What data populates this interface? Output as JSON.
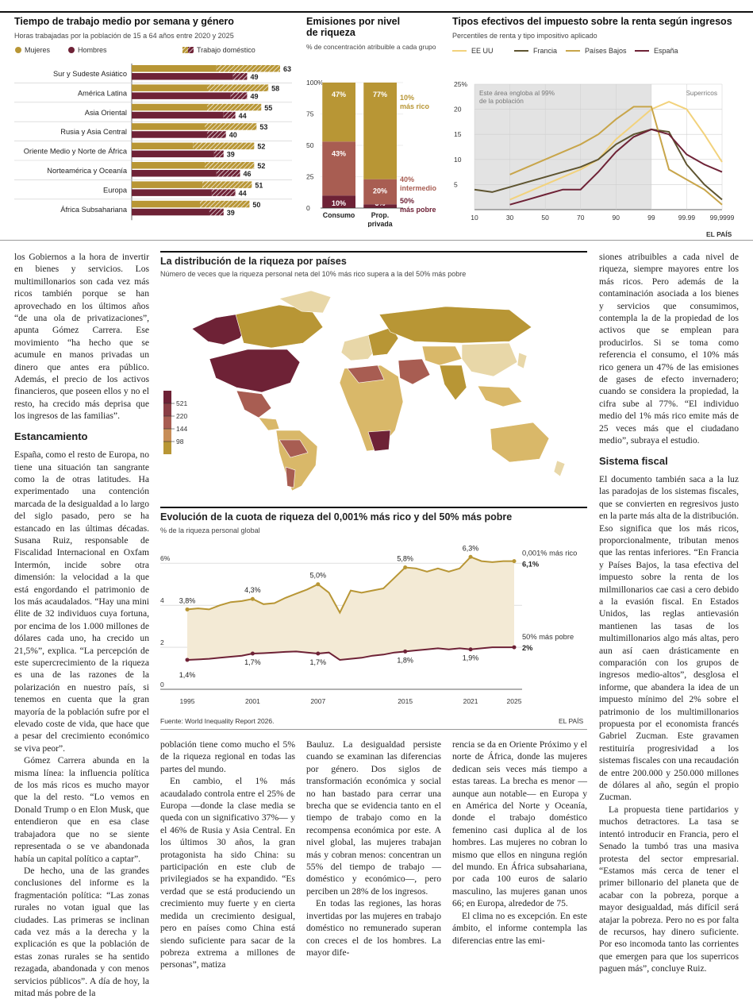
{
  "colors": {
    "gold": "#b89635",
    "maroon": "#6e2236",
    "rose": "#a85d52",
    "sand": "#d9b869",
    "light": "#e8d7a8",
    "pale": "#f3ead5"
  },
  "chart1": {
    "title": "Tiempo de trabajo medio por semana y género",
    "subtitle": "Horas trabajadas por la población de 15 a 64 años entre 2020 y 2025",
    "legend": {
      "women": "Mujeres",
      "men": "Hombres",
      "domestic": "Trabajo doméstico"
    }
  },
  "chart2": {
    "title_line1": "Emisiones por nivel",
    "title_line2": "de riqueza",
    "subtitle": "% de concentración atribuible a cada grupo",
    "y_ticks": [
      "100%",
      "75",
      "50",
      "25",
      "0"
    ],
    "cat_consumo": "Consumo",
    "cat_prop1": "Prop.",
    "cat_prop2": "privada",
    "labels": {
      "c_top": "47%",
      "c_mid": "43%",
      "c_bot": "10%",
      "p_top": "77%",
      "p_mid": "20%",
      "p_bot": "3%"
    },
    "groups": {
      "top_a": "10%",
      "top_b": "más rico",
      "mid_a": "40%",
      "mid_b": "intermedio",
      "bot_a": "50%",
      "bot_b": "más pobre"
    }
  },
  "chart3": {
    "title": "Tipos efectivos del impuesto sobre la renta según ingresos",
    "subtitle": "Percentiles de renta y tipo impositivo aplicado",
    "legend": [
      "EE UU",
      "Francia",
      "Países Bajos",
      "España"
    ],
    "y_ticks": [
      "25%",
      "20",
      "15",
      "10",
      "5"
    ],
    "x_ticks": [
      "10",
      "30",
      "50",
      "70",
      "90",
      "99",
      "99.99",
      "99,9999"
    ],
    "area_note_1": "Este área engloba al 99%",
    "area_note_2": "de la población",
    "superricos": "Superricos"
  },
  "source_top": "EL PAÍS",
  "map": {
    "title": "La distribución de la riqueza por países",
    "subtitle": "Número de veces que la riqueza personal neta del 10% más rico supera a la del 50% más pobre",
    "legend": [
      "521",
      "220",
      "144",
      "98"
    ]
  },
  "line": {
    "title": "Evolución de la cuota de riqueza del 0,001% más rico y del 50% más pobre",
    "subtitle": "% de la riqueza personal global",
    "y_ticks": [
      "6%",
      "4",
      "2",
      "0"
    ],
    "x_ticks": [
      "1995",
      "2001",
      "2007",
      "2015",
      "2021",
      "2025"
    ],
    "rich_label": "0,001% más rico",
    "rich_val": "6,1%",
    "poor_label": "50% más pobre",
    "poor_val": "2%",
    "rich_ann": [
      "3,8%",
      "4,3%",
      "5,0%",
      "5,8%",
      "6,3%"
    ],
    "poor_ann": [
      "1,4%",
      "1,7%",
      "1,7%",
      "1,8%",
      "1,9%"
    ],
    "source": "Fuente: World Inequality Report 2026.",
    "brand": "EL PAÍS"
  },
  "chart_data": [
    {
      "type": "bar",
      "title": "Tiempo de trabajo medio por semana y género",
      "categories": [
        "Sur y Sudeste Asiático",
        "América Latina",
        "Asia Oriental",
        "Rusia y Asia Central",
        "Oriente Medio y Norte de África",
        "Norteamérica y Oceanía",
        "Europa",
        "África Subsahariana"
      ],
      "series": [
        {
          "name": "Mujeres",
          "values": [
            63,
            58,
            55,
            53,
            52,
            52,
            51,
            50
          ],
          "domestic": [
            27,
            26,
            23,
            22,
            26,
            21,
            21,
            21
          ]
        },
        {
          "name": "Hombres",
          "values": [
            49,
            49,
            44,
            40,
            39,
            46,
            44,
            39
          ],
          "domestic": [
            6,
            7,
            5,
            8,
            4,
            10,
            10,
            6
          ]
        }
      ],
      "xlim": [
        0,
        70
      ]
    },
    {
      "type": "bar",
      "title": "Emisiones por nivel de riqueza",
      "categories": [
        "Consumo",
        "Prop. privada"
      ],
      "series": [
        {
          "name": "10% más rico",
          "values": [
            47,
            77
          ]
        },
        {
          "name": "40% intermedio",
          "values": [
            43,
            20
          ]
        },
        {
          "name": "50% más pobre",
          "values": [
            10,
            3
          ]
        }
      ],
      "ylim": [
        0,
        100
      ]
    },
    {
      "type": "line",
      "title": "Tipos efectivos del impuesto sobre la renta según ingresos",
      "x": [
        "10",
        "20",
        "30",
        "40",
        "50",
        "60",
        "70",
        "80",
        "90",
        "95",
        "99",
        "99.9",
        "99.99",
        "99.999",
        "99,9999"
      ],
      "series": [
        {
          "name": "EE UU",
          "values": [
            null,
            null,
            2,
            3.5,
            5,
            6.5,
            8,
            10,
            14,
            17,
            20,
            21.5,
            20,
            15,
            9.5
          ]
        },
        {
          "name": "Francia",
          "values": [
            4,
            3.5,
            4.5,
            5.5,
            6.5,
            7.5,
            8.5,
            10,
            13,
            15,
            16,
            15.5,
            9,
            5,
            2
          ]
        },
        {
          "name": "Países Bajos",
          "values": [
            null,
            null,
            7,
            8.5,
            10,
            11.5,
            13,
            15,
            18,
            20.5,
            20.5,
            8,
            6,
            4,
            1
          ]
        },
        {
          "name": "España",
          "values": [
            null,
            null,
            1,
            2,
            3,
            4,
            4,
            7.5,
            11.5,
            14.5,
            16,
            15,
            11,
            9,
            7.5
          ]
        }
      ],
      "ylim": [
        0,
        25
      ]
    },
    {
      "type": "line",
      "title": "Evolución de la cuota de riqueza del 0,001% más rico y del 50% más pobre",
      "x": [
        1995,
        1996,
        1997,
        1998,
        1999,
        2000,
        2001,
        2002,
        2003,
        2004,
        2005,
        2006,
        2007,
        2008,
        2009,
        2010,
        2011,
        2012,
        2013,
        2014,
        2015,
        2016,
        2017,
        2018,
        2019,
        2020,
        2021,
        2022,
        2023,
        2024,
        2025
      ],
      "series": [
        {
          "name": "0,001% más rico",
          "values": [
            3.8,
            3.85,
            3.8,
            4.0,
            4.15,
            4.2,
            4.3,
            4.05,
            4.1,
            4.35,
            4.55,
            4.75,
            5.0,
            4.6,
            3.65,
            4.7,
            4.6,
            4.7,
            4.8,
            5.3,
            5.8,
            5.75,
            5.6,
            5.75,
            5.6,
            5.75,
            6.3,
            6.1,
            6.05,
            6.1,
            6.1
          ]
        },
        {
          "name": "50% más pobre",
          "values": [
            1.4,
            1.42,
            1.45,
            1.5,
            1.55,
            1.6,
            1.7,
            1.72,
            1.75,
            1.78,
            1.8,
            1.75,
            1.7,
            1.75,
            1.4,
            1.45,
            1.5,
            1.6,
            1.65,
            1.75,
            1.8,
            1.85,
            1.9,
            1.95,
            1.9,
            1.95,
            1.9,
            1.95,
            2.0,
            2.0,
            2.0
          ]
        }
      ],
      "ylim": [
        0,
        6.5
      ]
    }
  ],
  "article": {
    "col1": [
      "los Gobiernos a la hora de invertir en bienes y servicios. Los multimillonarios son cada vez más ricos también porque se han aprovechado en los últimos años “de una ola de privatizaciones”, apunta Gómez Carrera. Ese movimiento “ha hecho que se acumule en manos privadas un dinero que antes era público. Además, el precio de los activos financieros, que poseen ellos y no el resto, ha crecido más deprisa que los ingresos de las familias”.",
      "Estancamiento",
      "España, como el resto de Europa, no tiene una situación tan sangrante como la de otras latitudes. Ha experimentado una contención marcada de la desigualdad a lo largo del siglo pasado, pero se ha estancado en las últimas décadas. Susana Ruiz, responsable de Fiscalidad Internacional en Oxfam Intermón, incide sobre otra dimensión: la velocidad a la que está engordando el patrimonio de los más acaudalados. “Hay una mini élite de 32 individuos cuya fortuna, por encima de los 1.000 millones de dólares cada uno, ha crecido un 21,5%”, explica. “La percepción de este supercrecimiento de la riqueza es una de las razones de la polarización en nuestro país, si tenemos en cuenta que la gran mayoría de la población sufre por el elevado coste de vida, que hace que a pesar del crecimiento económico se viva peor”.",
      "Gómez Carrera abunda en la misma línea: la influencia política de los más ricos es mucho mayor que la del resto. “Lo vemos en Donald Trump o en Elon Musk, que entendieron que en esa clase trabajadora que no se siente representada o se ve abandonada había un capital político a captar”.",
      "De hecho, una de las grandes conclusiones del informe es la fragmentación política: “Las zonas rurales no votan igual que las ciudades. Las primeras se inclinan cada vez más a la derecha y la explicación es que la población de estas zonas rurales se ha sentido rezagada, abandonada y con menos servicios públicos”. A día de hoy, la mitad más pobre de la"
    ],
    "col2": [
      "población tiene como mucho el 5% de la riqueza regional en todas las partes del mundo.",
      "En cambio, el 1% más acaudalado controla entre el 25% de Europa —donde la clase media se queda con un significativo 37%— y el 46% de Rusia y Asia Central. En los últimos 30 años, la gran protagonista ha sido China: su participación en este club de privilegiados se ha expandido. “Es verdad que se está produciendo un crecimiento muy fuerte y en cierta medida un crecimiento desigual, pero en países como China está siendo suficiente para sacar de la pobreza extrema a millones de personas”, matiza"
    ],
    "col3": [
      "Bauluz. La desigualdad persiste cuando se examinan las diferencias por género. Dos siglos de transformación económica y social no han bastado para cerrar una brecha que se evidencia tanto en el tiempo de trabajo como en la recompensa económica por este. A nivel global, las mujeres trabajan más y cobran menos: concentran un 55% del tiempo de trabajo —doméstico y económico—, pero perciben un 28% de los ingresos.",
      "En todas las regiones, las horas invertidas por las mujeres en trabajo doméstico no remunerado superan con creces el de los hombres. La mayor dife-"
    ],
    "col4": [
      "rencia se da en Oriente Próximo y el norte de África, donde las mujeres dedican seis veces más tiempo a estas tareas. La brecha es menor —aunque aun notable— en Europa y en América del Norte y Oceanía, donde el trabajo doméstico femenino casi duplica al de los hombres. Las mujeres no cobran lo mismo que ellos en ninguna región del mundo. En África subsahariana, por cada 100 euros de salario masculino, las mujeres ganan unos 66; en Europa, alrededor de 75.",
      "El clima no es excepción. En este ámbito, el informe contempla las diferencias entre las emi-"
    ],
    "col5": [
      "siones atribuibles a cada nivel de riqueza, siempre mayores entre los más ricos. Pero además de la contaminación asociada a los bienes y servicios que consumimos, contempla la de la propiedad de los activos que se emplean para producirlos. Si se toma como referencia el consumo, el 10% más rico genera un 47% de las emisiones de gases de efecto invernadero; cuando se considera la propiedad, la cifra sube al 77%. “El individuo medio del 1% más rico emite más de 25 veces más que el ciudadano medio”, subraya el estudio.",
      "Sistema fiscal",
      "El documento también saca a la luz las paradojas de los sistemas fiscales, que se convierten en regresivos justo en la parte más alta de la distribución. Eso significa que los más ricos, proporcionalmente, tributan menos que las rentas inferiores. “En Francia y Países Bajos, la tasa efectiva del impuesto sobre la renta de los milmillonarios cae casi a cero debido a la evasión fiscal. En Estados Unidos, las reglas antievasión mantienen las tasas de los multimillonarios algo más altas, pero aun así caen drásticamente en comparación con los grupos de ingresos medio-altos”, desglosa el informe, que abandera la idea de un impuesto mínimo del 2% sobre el patrimonio de los multimillonarios propuesta por el economista francés Gabriel Zucman. Este gravamen restituiría progresividad a los sistemas fiscales con una recaudación de entre 200.000 y 250.000 millones de dólares al año, según el propio Zucman.",
      "La propuesta tiene partidarios y muchos detractores. La tasa se intentó introducir en Francia, pero el Senado la tumbó tras una masiva protesta del sector empresarial. “Estamos más cerca de tener el primer billonario del planeta que de acabar con la pobreza, porque a mayor desigualdad, más difícil será atajar la pobreza. Pero no es por falta de recursos, hay dinero suficiente. Por eso incomoda tanto las corrientes que emergen para que los superricos paguen más”, concluye Ruiz."
    ]
  }
}
